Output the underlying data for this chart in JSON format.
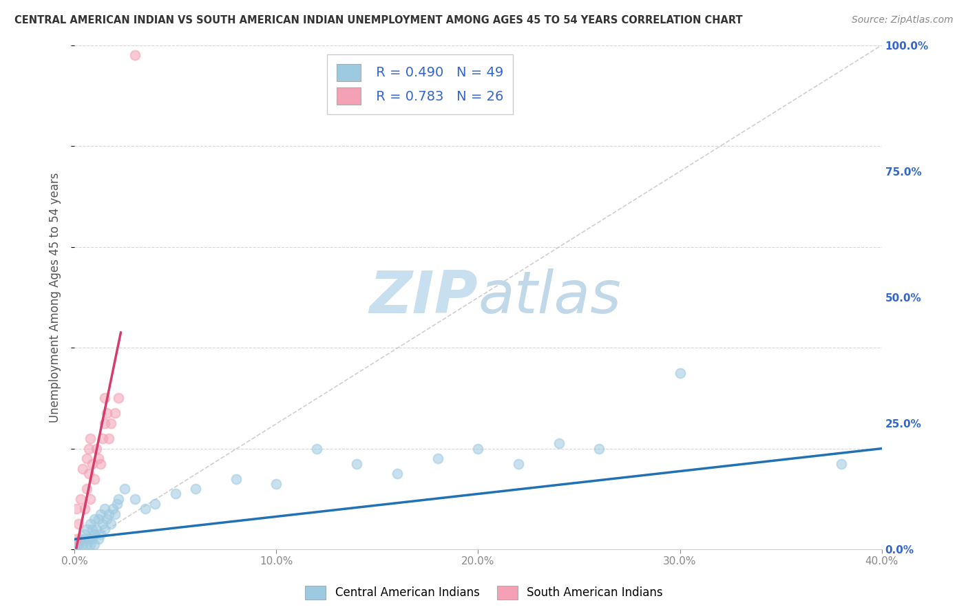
{
  "title": "CENTRAL AMERICAN INDIAN VS SOUTH AMERICAN INDIAN UNEMPLOYMENT AMONG AGES 45 TO 54 YEARS CORRELATION CHART",
  "source": "Source: ZipAtlas.com",
  "ylabel": "Unemployment Among Ages 45 to 54 years",
  "xlim": [
    0.0,
    0.4
  ],
  "ylim": [
    0.0,
    1.0
  ],
  "xtick_labels": [
    "0.0%",
    "10.0%",
    "20.0%",
    "30.0%",
    "40.0%"
  ],
  "xtick_values": [
    0.0,
    0.1,
    0.2,
    0.3,
    0.4
  ],
  "ytick_labels": [
    "0.0%",
    "25.0%",
    "50.0%",
    "75.0%",
    "100.0%"
  ],
  "ytick_values": [
    0.0,
    0.25,
    0.5,
    0.75,
    1.0
  ],
  "legend_r1": "R = 0.490",
  "legend_n1": "N = 49",
  "legend_r2": "R = 0.783",
  "legend_n2": "N = 26",
  "blue_color": "#9ecae1",
  "pink_color": "#f4a0b5",
  "blue_line_color": "#2171b5",
  "pink_line_color": "#d63c6b",
  "title_color": "#333333",
  "source_color": "#888888",
  "axis_label_color": "#555555",
  "tick_color": "#888888",
  "right_tick_color": "#3366cc",
  "watermark_zip_color": "#c8dff0",
  "watermark_atlas_color": "#c0d8e8",
  "background_color": "#ffffff",
  "grid_color": "#cccccc",
  "blue_scatter_x": [
    0.001,
    0.002,
    0.003,
    0.004,
    0.005,
    0.005,
    0.006,
    0.006,
    0.007,
    0.008,
    0.008,
    0.009,
    0.009,
    0.01,
    0.01,
    0.01,
    0.011,
    0.012,
    0.012,
    0.013,
    0.013,
    0.014,
    0.015,
    0.015,
    0.016,
    0.017,
    0.018,
    0.019,
    0.02,
    0.021,
    0.022,
    0.025,
    0.03,
    0.035,
    0.04,
    0.05,
    0.06,
    0.08,
    0.1,
    0.12,
    0.14,
    0.16,
    0.18,
    0.2,
    0.22,
    0.24,
    0.26,
    0.3,
    0.38
  ],
  "blue_scatter_y": [
    0.01,
    0.01,
    0.02,
    0.01,
    0.02,
    0.03,
    0.01,
    0.04,
    0.02,
    0.01,
    0.05,
    0.02,
    0.04,
    0.01,
    0.03,
    0.06,
    0.04,
    0.02,
    0.06,
    0.03,
    0.07,
    0.05,
    0.04,
    0.08,
    0.06,
    0.07,
    0.05,
    0.08,
    0.07,
    0.09,
    0.1,
    0.12,
    0.1,
    0.08,
    0.09,
    0.11,
    0.12,
    0.14,
    0.13,
    0.2,
    0.17,
    0.15,
    0.18,
    0.2,
    0.17,
    0.21,
    0.2,
    0.35,
    0.17
  ],
  "pink_scatter_x": [
    0.001,
    0.001,
    0.002,
    0.003,
    0.004,
    0.005,
    0.006,
    0.006,
    0.007,
    0.007,
    0.008,
    0.008,
    0.009,
    0.01,
    0.011,
    0.012,
    0.013,
    0.014,
    0.015,
    0.015,
    0.016,
    0.017,
    0.018,
    0.02,
    0.022,
    0.03
  ],
  "pink_scatter_y": [
    0.02,
    0.08,
    0.05,
    0.1,
    0.16,
    0.08,
    0.12,
    0.18,
    0.15,
    0.2,
    0.1,
    0.22,
    0.17,
    0.14,
    0.2,
    0.18,
    0.17,
    0.22,
    0.25,
    0.3,
    0.27,
    0.22,
    0.25,
    0.27,
    0.3,
    0.98
  ],
  "blue_trendline_x": [
    0.0,
    0.4
  ],
  "blue_trendline_y": [
    0.02,
    0.2
  ],
  "pink_trendline_x": [
    0.001,
    0.023
  ],
  "pink_trendline_y": [
    0.003,
    0.43
  ],
  "diagonal_line_x": [
    0.001,
    0.4
  ],
  "diagonal_line_y": [
    0.001,
    1.0
  ]
}
